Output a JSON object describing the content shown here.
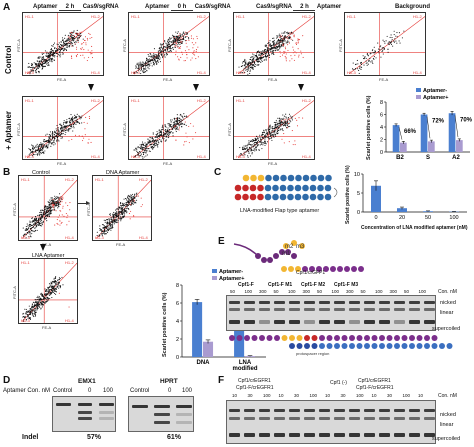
{
  "panel_a": {
    "letter": "A",
    "headers": [
      {
        "left": "Aptamer",
        "time": "2 h",
        "right": "Cas9/sgRNA"
      },
      {
        "left": "Aptamer",
        "time": "0 h",
        "right": "Cas9/sgRNA"
      },
      {
        "left": "Cas9/sgRNA",
        "time": "2 h",
        "right": "Aptamer"
      },
      {
        "title": "Background"
      }
    ],
    "row_labels": [
      "Control",
      "+ Aptamer"
    ],
    "flow_row1_gates": [
      "H1-1",
      "H1-2",
      "H1-3",
      "H1-4"
    ],
    "flow_axis_x": "FE-A",
    "flow_axis_y": "FITC-A",
    "legend": [
      "Aptamer-",
      "Aptamer+"
    ],
    "pct_labels": [
      "66%",
      "72%",
      "70%"
    ],
    "ylabel": "Scarlet positive cells (%)"
  },
  "panel_b": {
    "letter": "B",
    "flow_titles": [
      "Control",
      "DNA Aptamer",
      "LNA Aptamer"
    ],
    "legend": [
      "Aptamer-",
      "Aptamer+"
    ],
    "ylabel": "Scarlet positive cells (%)"
  },
  "panel_c": {
    "letter": "C",
    "seq_label": "LNA-modified Flap type aptamer",
    "ylabel": "Scarlet positive cells (%)",
    "xlabel": "Concentration of LNA modified aptamer (nM)"
  },
  "panel_d": {
    "letter": "D",
    "row_label": "Aptamer Con. nM",
    "genes": [
      "EMX1",
      "HPRT"
    ],
    "lane_labels": [
      "Control",
      "0",
      "100"
    ],
    "indel_label": "Indel",
    "indel_values": [
      "57%",
      "61%"
    ]
  },
  "panel_e": {
    "letter": "E",
    "top_labels": [
      "m1",
      "m2",
      "m3",
      "Cpf1/crGFP1"
    ],
    "lane_groups": [
      "Cpf1-F",
      "Cpf1-F M1",
      "Cpf1-F M2",
      "Cpf1-F M3"
    ],
    "lane_conc": [
      "50",
      "100",
      "300"
    ],
    "con_label": "Con. nM",
    "band_labels": [
      "nicked",
      "linear",
      "supercoiled"
    ],
    "protospacer": "protospacer region"
  },
  "panel_f": {
    "letter": "F",
    "groups": [
      "Cpf1/crEGFR1",
      "Cpf1-F/crEGFR1",
      "Cpf1/crEGFR1",
      "Cpf1-F/crEGFR1",
      "Cpf1 (-)"
    ],
    "lane_conc": [
      "10",
      "30",
      "100"
    ],
    "con_label": "Con. nM",
    "band_labels": [
      "nicked",
      "linear",
      "supercoiled"
    ]
  },
  "colors": {
    "aptamer_minus": "#4a7fd0",
    "aptamer_plus": "#a99bd0",
    "gate_red": "#e53935"
  },
  "chart_data": [
    {
      "type": "bar",
      "categories": [
        "B2",
        "S",
        "A2"
      ],
      "series": [
        {
          "name": "Aptamer-",
          "values": [
            4.3,
            6.0,
            6.2
          ],
          "errors": [
            0.2,
            0.2,
            0.3
          ]
        },
        {
          "name": "Aptamer+",
          "values": [
            1.5,
            1.7,
            1.9
          ],
          "errors": [
            0.2,
            0.2,
            0.2
          ]
        }
      ],
      "ylim": [
        0,
        8
      ],
      "yticks": [
        0,
        2,
        4,
        6,
        8
      ],
      "ylabel": "Scarlet positive cells (%)",
      "annotations": [
        "66%",
        "72%",
        "70%"
      ],
      "legend": "top-right"
    },
    {
      "type": "bar",
      "categories": [
        "DNA",
        "LNA modified"
      ],
      "series": [
        {
          "name": "Aptamer-",
          "values": [
            6.1,
            6.1
          ],
          "errors": [
            0.3,
            0.3
          ]
        },
        {
          "name": "Aptamer+",
          "values": [
            1.7,
            0.1
          ],
          "errors": [
            0.2,
            0.05
          ]
        }
      ],
      "ylim": [
        0,
        8
      ],
      "yticks": [
        0,
        2,
        4,
        6,
        8
      ],
      "ylabel": "Scarlet positive cells (%)",
      "legend": "top-right"
    },
    {
      "type": "bar",
      "categories": [
        "0",
        "20",
        "50",
        "100"
      ],
      "values": [
        6.9,
        1.0,
        0.2,
        0.1
      ],
      "errors": [
        1.3,
        0.3,
        0.1,
        0.05
      ],
      "ylim": [
        0,
        10
      ],
      "yticks": [
        0,
        5,
        10
      ],
      "ylabel": "Scarlet positive cells (%)",
      "xlabel": "Concentration of LNA modified aptamer (nM)"
    }
  ]
}
